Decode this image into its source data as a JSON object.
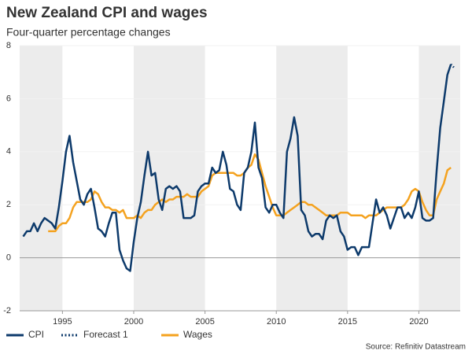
{
  "chart_data": {
    "type": "line",
    "title": "New Zealand CPI and wages",
    "subtitle": "Four-quarter percentage changes",
    "source": "Source: Refinitiv Datastream",
    "xlim": [
      1992,
      2022.9
    ],
    "xticks": [
      1995,
      2000,
      2005,
      2010,
      2015,
      2020
    ],
    "ylim": [
      -2,
      8
    ],
    "yticks": [
      -2,
      0,
      2,
      4,
      6,
      8
    ],
    "grid": true,
    "series": [
      {
        "name": "CPI",
        "color": "#0d3a6b",
        "style": "solid",
        "x": [
          1992.25,
          1992.5,
          1992.75,
          1993,
          1993.25,
          1993.5,
          1993.75,
          1994,
          1994.25,
          1994.5,
          1994.75,
          1995,
          1995.25,
          1995.5,
          1995.75,
          1996,
          1996.25,
          1996.5,
          1996.75,
          1997,
          1997.25,
          1997.5,
          1997.75,
          1998,
          1998.25,
          1998.5,
          1998.75,
          1999,
          1999.25,
          1999.5,
          1999.75,
          2000,
          2000.25,
          2000.5,
          2000.75,
          2001,
          2001.25,
          2001.5,
          2001.75,
          2002,
          2002.25,
          2002.5,
          2002.75,
          2003,
          2003.25,
          2003.5,
          2003.75,
          2004,
          2004.25,
          2004.5,
          2004.75,
          2005,
          2005.25,
          2005.5,
          2005.75,
          2006,
          2006.25,
          2006.5,
          2006.75,
          2007,
          2007.25,
          2007.5,
          2007.75,
          2008,
          2008.25,
          2008.5,
          2008.75,
          2009,
          2009.25,
          2009.5,
          2009.75,
          2010,
          2010.25,
          2010.5,
          2010.75,
          2011,
          2011.25,
          2011.5,
          2011.75,
          2012,
          2012.25,
          2012.5,
          2012.75,
          2013,
          2013.25,
          2013.5,
          2013.75,
          2014,
          2014.25,
          2014.5,
          2014.75,
          2015,
          2015.25,
          2015.5,
          2015.75,
          2016,
          2016.25,
          2016.5,
          2016.75,
          2017,
          2017.25,
          2017.5,
          2017.75,
          2018,
          2018.25,
          2018.5,
          2018.75,
          2019,
          2019.25,
          2019.5,
          2019.75,
          2020,
          2020.25,
          2020.5,
          2020.75,
          2021,
          2021.25,
          2021.5,
          2021.75,
          2022,
          2022.25
        ],
        "values": [
          0.8,
          1.0,
          1.0,
          1.3,
          1.0,
          1.3,
          1.5,
          1.4,
          1.3,
          1.1,
          1.9,
          2.9,
          4.0,
          4.6,
          3.6,
          2.9,
          2.2,
          2.0,
          2.4,
          2.6,
          1.9,
          1.1,
          1.0,
          0.8,
          1.3,
          1.7,
          1.7,
          0.3,
          -0.1,
          -0.4,
          -0.5,
          0.6,
          1.5,
          2.1,
          3.1,
          4.0,
          3.1,
          3.2,
          2.2,
          1.8,
          2.6,
          2.7,
          2.6,
          2.7,
          2.5,
          1.5,
          1.5,
          1.5,
          1.6,
          2.5,
          2.7,
          2.8,
          2.8,
          3.4,
          3.2,
          3.3,
          4.0,
          3.5,
          2.6,
          2.5,
          2.0,
          1.8,
          3.2,
          3.4,
          4.0,
          5.1,
          3.4,
          3.0,
          1.9,
          1.7,
          2.0,
          2.0,
          1.7,
          1.5,
          4.0,
          4.5,
          5.3,
          4.6,
          1.8,
          1.6,
          1.0,
          0.8,
          0.9,
          0.9,
          0.7,
          1.4,
          1.6,
          1.5,
          1.6,
          1.0,
          0.8,
          0.3,
          0.4,
          0.4,
          0.1,
          0.4,
          0.4,
          0.4,
          1.3,
          2.2,
          1.7,
          1.9,
          1.6,
          1.1,
          1.5,
          1.9,
          1.9,
          1.5,
          1.7,
          1.5,
          1.9,
          2.5,
          1.5,
          1.4,
          1.4,
          1.5,
          3.3,
          4.9,
          5.9,
          6.9,
          7.3
        ]
      },
      {
        "name": "Forecast 1",
        "color": "#0d3a6b",
        "style": "dotted",
        "x": [
          2022.25,
          2022.5
        ],
        "values": [
          7.3,
          7.15
        ]
      },
      {
        "name": "Wages",
        "color": "#f4a21f",
        "style": "solid",
        "x": [
          1994,
          1994.25,
          1994.5,
          1994.75,
          1995,
          1995.25,
          1995.5,
          1995.75,
          1996,
          1996.25,
          1996.5,
          1996.75,
          1997,
          1997.25,
          1997.5,
          1997.75,
          1998,
          1998.25,
          1998.5,
          1998.75,
          1999,
          1999.25,
          1999.5,
          1999.75,
          2000,
          2000.25,
          2000.5,
          2000.75,
          2001,
          2001.25,
          2001.5,
          2001.75,
          2002,
          2002.25,
          2002.5,
          2002.75,
          2003,
          2003.25,
          2003.5,
          2003.75,
          2004,
          2004.25,
          2004.5,
          2004.75,
          2005,
          2005.25,
          2005.5,
          2005.75,
          2006,
          2006.25,
          2006.5,
          2006.75,
          2007,
          2007.25,
          2007.5,
          2007.75,
          2008,
          2008.25,
          2008.5,
          2008.75,
          2009,
          2009.25,
          2009.5,
          2009.75,
          2010,
          2010.25,
          2010.5,
          2010.75,
          2011,
          2011.25,
          2011.5,
          2011.75,
          2012,
          2012.25,
          2012.5,
          2012.75,
          2013,
          2013.25,
          2013.5,
          2013.75,
          2014,
          2014.25,
          2014.5,
          2014.75,
          2015,
          2015.25,
          2015.5,
          2015.75,
          2016,
          2016.25,
          2016.5,
          2016.75,
          2017,
          2017.25,
          2017.5,
          2017.75,
          2018,
          2018.25,
          2018.5,
          2018.75,
          2019,
          2019.25,
          2019.5,
          2019.75,
          2020,
          2020.25,
          2020.5,
          2020.75,
          2021,
          2021.25,
          2021.5,
          2021.75,
          2022,
          2022.25
        ],
        "values": [
          1.0,
          1.0,
          1.0,
          1.2,
          1.3,
          1.3,
          1.5,
          1.9,
          2.1,
          2.1,
          2.1,
          2.1,
          2.2,
          2.5,
          2.4,
          2.1,
          1.9,
          1.9,
          1.8,
          1.8,
          1.7,
          1.8,
          1.5,
          1.5,
          1.5,
          1.6,
          1.5,
          1.7,
          1.8,
          1.8,
          2.0,
          2.1,
          2.2,
          2.1,
          2.2,
          2.2,
          2.3,
          2.3,
          2.3,
          2.4,
          2.3,
          2.3,
          2.3,
          2.5,
          2.6,
          2.7,
          3.1,
          3.2,
          3.2,
          3.2,
          3.2,
          3.2,
          3.2,
          3.1,
          3.1,
          3.2,
          3.4,
          3.5,
          3.9,
          3.7,
          3.2,
          2.7,
          2.3,
          1.9,
          1.6,
          1.6,
          1.6,
          1.7,
          1.8,
          1.9,
          2.0,
          2.1,
          2.1,
          2.0,
          2.0,
          1.9,
          1.8,
          1.7,
          1.6,
          1.6,
          1.6,
          1.6,
          1.7,
          1.7,
          1.7,
          1.6,
          1.6,
          1.6,
          1.6,
          1.5,
          1.6,
          1.6,
          1.6,
          1.7,
          1.8,
          1.9,
          1.9,
          1.9,
          1.9,
          1.9,
          2.0,
          2.2,
          2.5,
          2.6,
          2.5,
          2.1,
          1.8,
          1.6,
          1.6,
          2.2,
          2.5,
          2.8,
          3.3,
          3.4
        ]
      }
    ]
  }
}
